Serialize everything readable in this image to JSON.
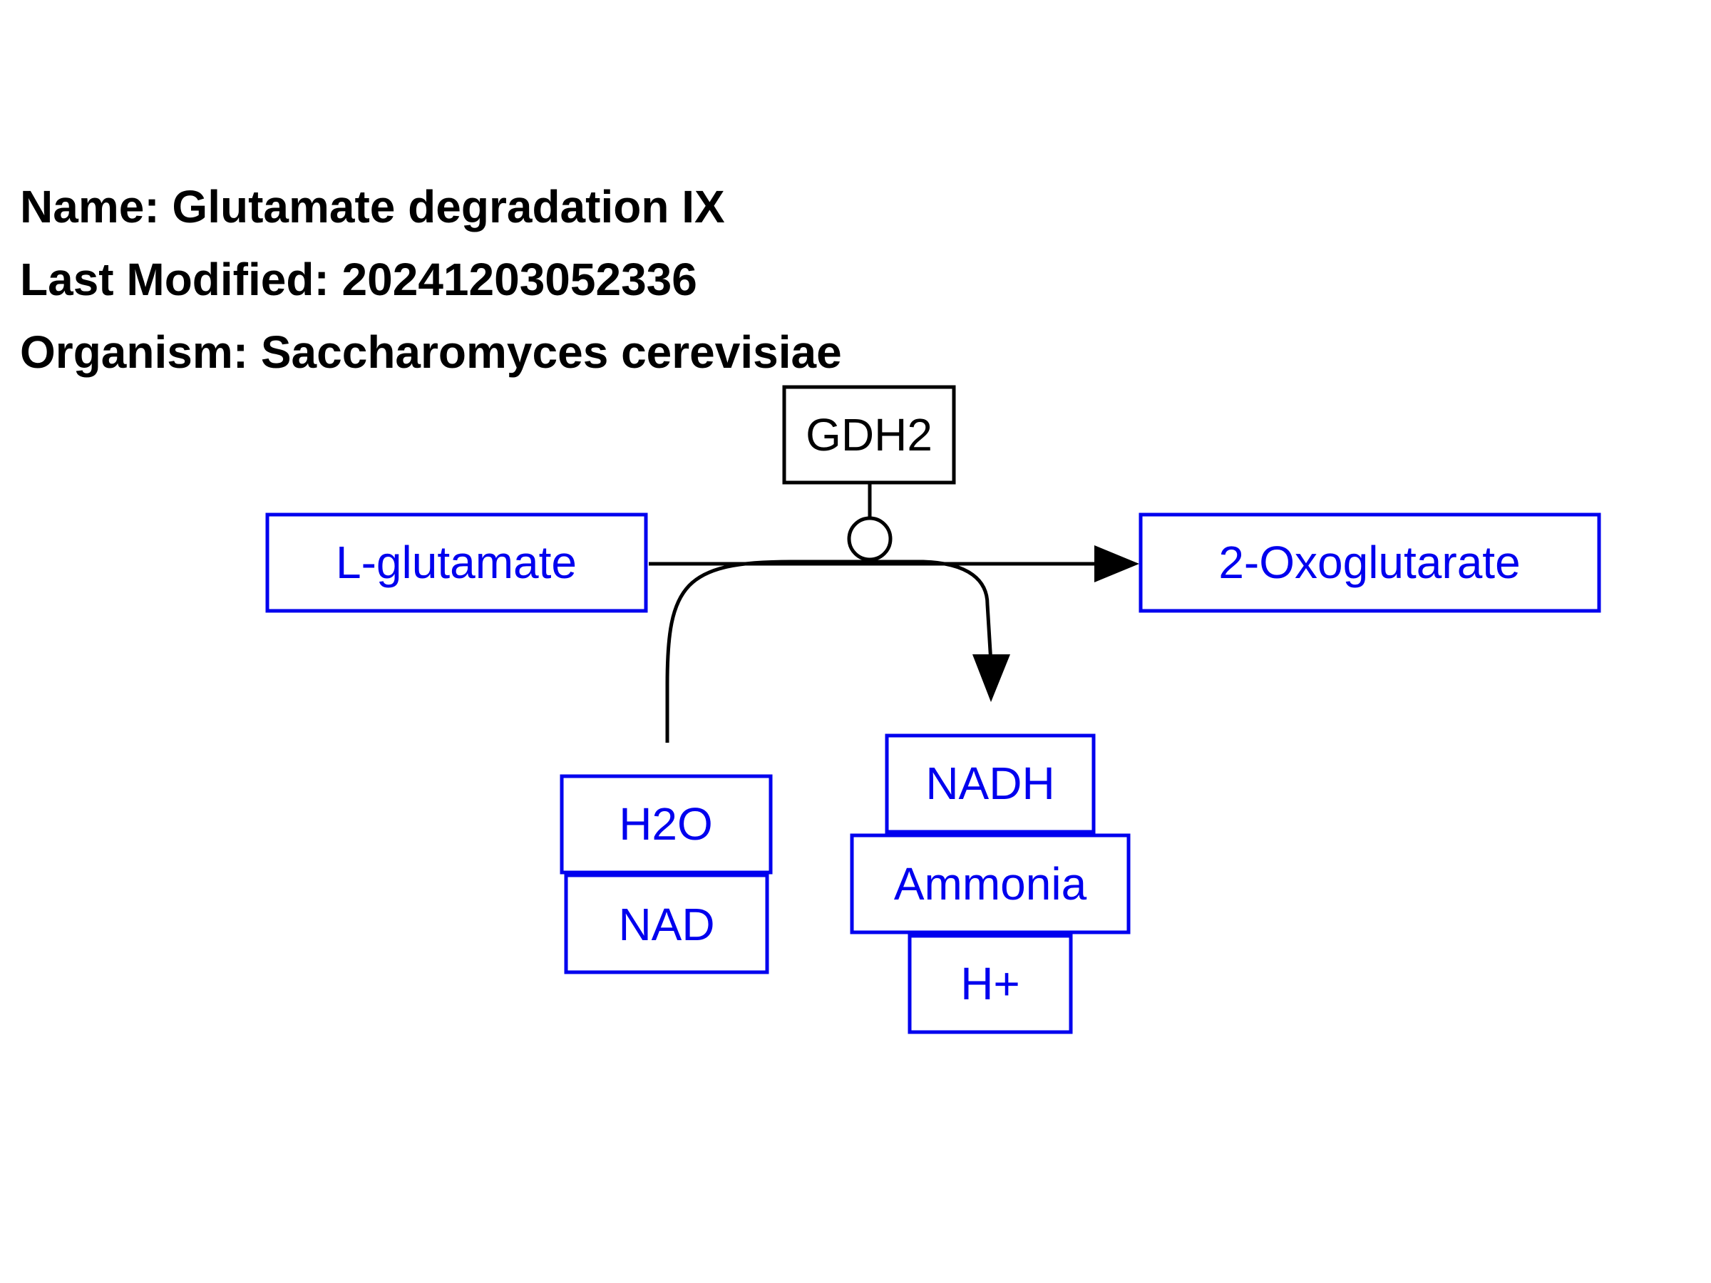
{
  "header": {
    "name_line": "Name: Glutamate degradation IX",
    "modified_line": "Last Modified: 20241203052336",
    "organism_line": "Organism: Saccharomyces cerevisiae"
  },
  "nodes": {
    "gdh2": "GDH2",
    "l_glutamate": "L-glutamate",
    "oxoglutarate": "2-Oxoglutarate",
    "h2o": "H2O",
    "nad": "NAD",
    "nadh": "NADH",
    "ammonia": "Ammonia",
    "h_plus": "H+"
  },
  "colors": {
    "metabolite": "#0000ee",
    "gene": "#000000",
    "edge": "#000000"
  }
}
